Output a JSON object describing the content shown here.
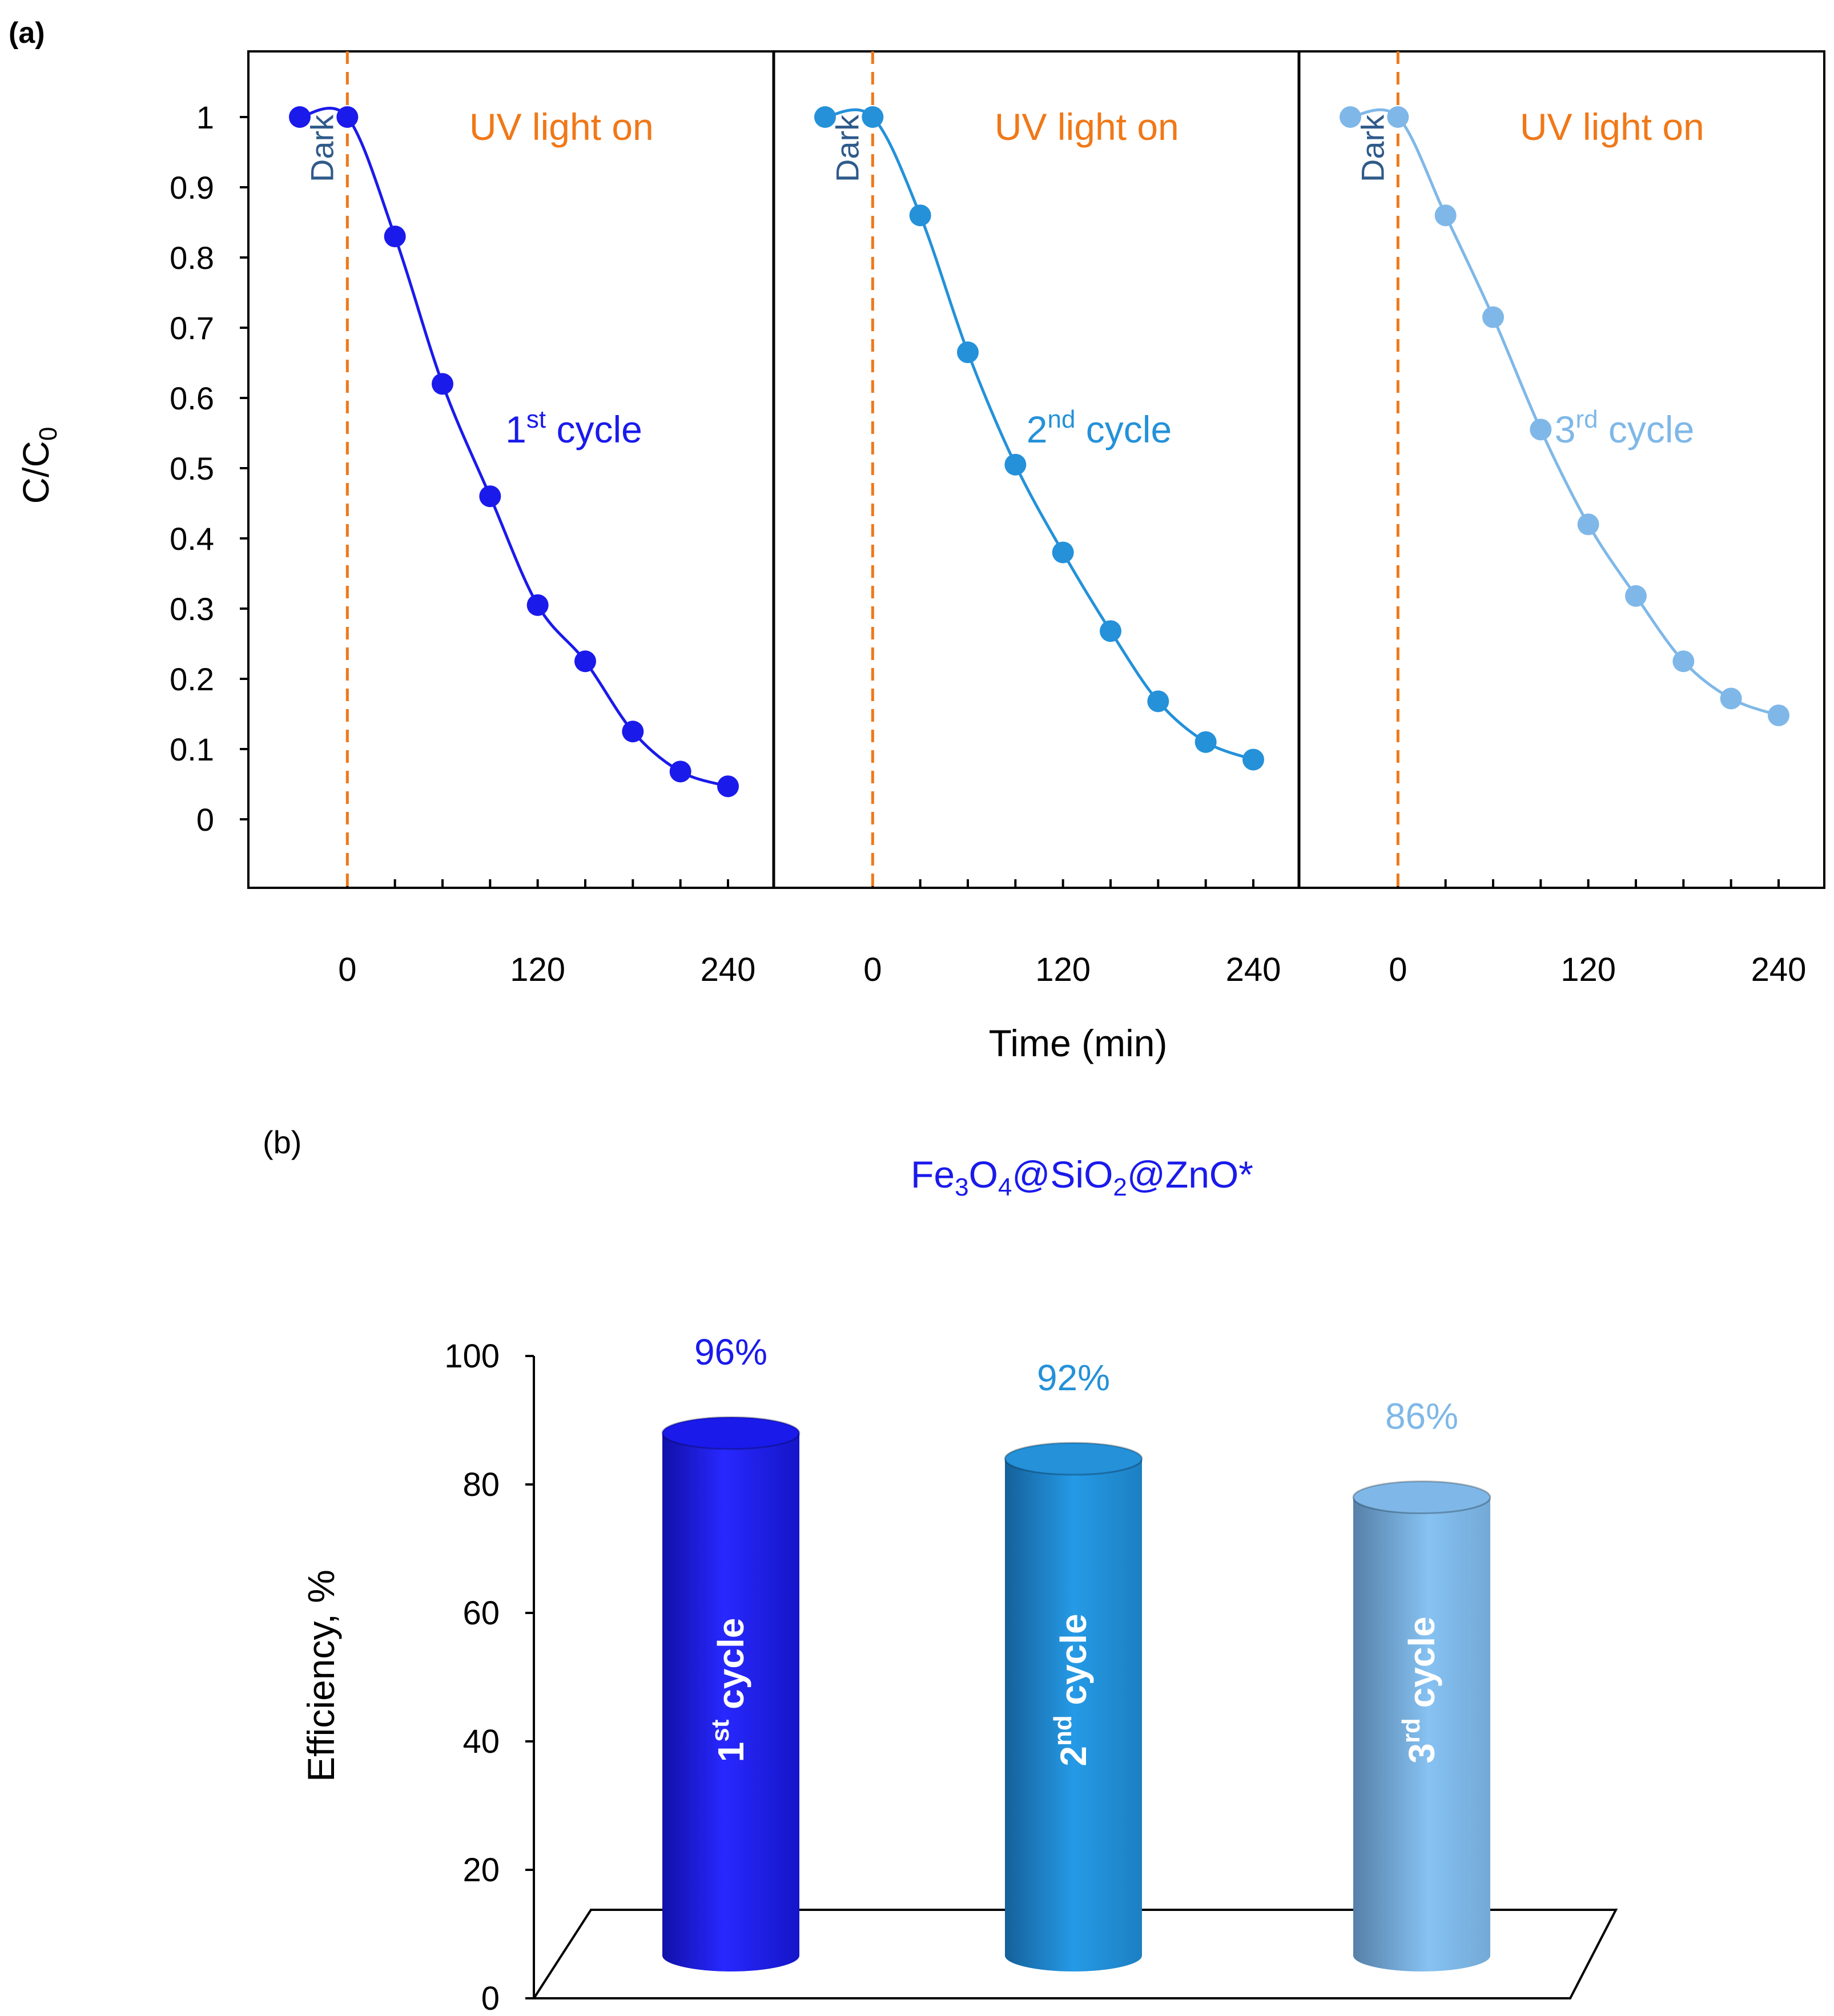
{
  "panel_a_label": "(a)",
  "panel_b_label": "(b)",
  "colors": {
    "cycle1": "#1a1aeb",
    "cycle2": "#2491d9",
    "cycle3": "#7fb8e8",
    "uv": "#f07818",
    "dark": "#2f5a8a",
    "axis": "#000000"
  },
  "chart_data": [
    {
      "type": "line",
      "panel": "a",
      "ylabel": "C/C",
      "ylabel_sub": "0",
      "xlabel": "Time (min)",
      "ylim": [
        -0.1,
        1.1
      ],
      "yticks": [
        "1",
        "0.9",
        "0.8",
        "0.7",
        "0.6",
        "0.5",
        "0.4",
        "0.3",
        "0.2",
        "0.1",
        "0"
      ],
      "xticks": [
        "0",
        "120",
        "240"
      ],
      "dark_label": "Dark",
      "uv_label": "UV light on",
      "x": [
        -30,
        0,
        30,
        60,
        90,
        120,
        150,
        180,
        210,
        240
      ],
      "series": [
        {
          "name": "1st cycle",
          "name_base": "1",
          "name_sup": "st",
          "name_tail": " cycle",
          "color": "#1a1aeb",
          "values": [
            1,
            1,
            0.83,
            0.62,
            0.46,
            0.305,
            0.225,
            0.125,
            0.068,
            0.047
          ]
        },
        {
          "name": "2nd cycle",
          "name_base": "2",
          "name_sup": "nd",
          "name_tail": " cycle",
          "color": "#2491d9",
          "values": [
            1,
            1,
            0.86,
            0.665,
            0.505,
            0.38,
            0.268,
            0.168,
            0.11,
            0.085
          ]
        },
        {
          "name": "3rd cycle",
          "name_base": "3",
          "name_sup": "rd",
          "name_tail": " cycle",
          "color": "#7fb8e8",
          "values": [
            1,
            1,
            0.86,
            0.715,
            0.555,
            0.42,
            0.318,
            0.225,
            0.172,
            0.148
          ]
        }
      ]
    },
    {
      "type": "bar",
      "panel": "b",
      "title_parts": [
        "Fe",
        "3",
        "O",
        "4",
        "@SiO",
        "2",
        "@ZnO*"
      ],
      "ylabel": "Efficiency, %",
      "ylim": [
        0,
        100
      ],
      "yticks": [
        "100",
        "80",
        "60",
        "40",
        "20",
        "0"
      ],
      "categories": [
        "1st cycle",
        "2nd cycle",
        "3rd cycle"
      ],
      "category_parts": [
        [
          "1",
          "st",
          " cycle"
        ],
        [
          "2",
          "nd",
          " cycle"
        ],
        [
          "3",
          "rd",
          " cycle"
        ]
      ],
      "values": [
        96,
        92,
        86
      ],
      "value_labels": [
        "96%",
        "92%",
        "86%"
      ],
      "colors": [
        "#1a1aeb",
        "#2491d9",
        "#7fb8e8"
      ]
    }
  ]
}
